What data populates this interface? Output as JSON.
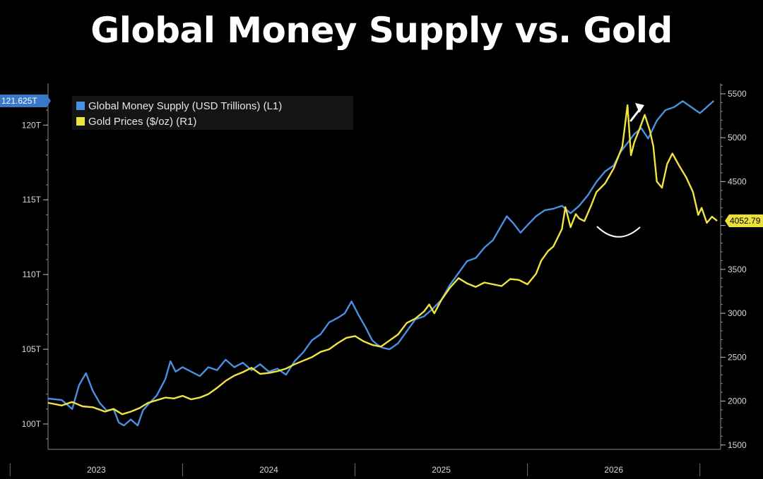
{
  "chart_data": {
    "type": "line",
    "title": "Global Money Supply vs. Gold",
    "x_labels": [
      "2023",
      "2024",
      "2025",
      "2026"
    ],
    "x_range": [
      2022.72,
      2026.62
    ],
    "left_axis": {
      "ticks": [
        100,
        105,
        110,
        115,
        120
      ],
      "tick_labels": [
        "100T",
        "105T",
        "110T",
        "115T",
        "120T"
      ],
      "range": [
        98.3,
        122.8
      ]
    },
    "right_axis": {
      "ticks": [
        1500,
        2000,
        2500,
        3000,
        3500,
        4000,
        4500,
        5000,
        5500
      ],
      "tick_labels": [
        "1500",
        "2000",
        "2500",
        "3000",
        "3500",
        "",
        "4500",
        "5000",
        "5500"
      ],
      "range": [
        1450,
        5620
      ]
    },
    "legend": {
      "position": "top-left"
    },
    "colors": {
      "money": "#4a90e2",
      "gold": "#f2e440",
      "badge_money": "#3a78c8",
      "badge_gold": "#ece03c"
    },
    "series": [
      {
        "name": "Global Money Supply (USD Trillions) (L1)",
        "axis": "left",
        "last_value_label": "121.625T",
        "points": [
          [
            2022.72,
            101.7
          ],
          [
            2022.8,
            101.6
          ],
          [
            2022.86,
            101.0
          ],
          [
            2022.9,
            102.6
          ],
          [
            2022.94,
            103.4
          ],
          [
            2022.98,
            102.2
          ],
          [
            2023.02,
            101.4
          ],
          [
            2023.06,
            100.9
          ],
          [
            2023.1,
            101.0
          ],
          [
            2023.13,
            100.1
          ],
          [
            2023.16,
            99.9
          ],
          [
            2023.2,
            100.3
          ],
          [
            2023.24,
            99.9
          ],
          [
            2023.27,
            100.9
          ],
          [
            2023.3,
            101.3
          ],
          [
            2023.35,
            101.9
          ],
          [
            2023.4,
            103.0
          ],
          [
            2023.43,
            104.2
          ],
          [
            2023.46,
            103.5
          ],
          [
            2023.5,
            103.8
          ],
          [
            2023.55,
            103.5
          ],
          [
            2023.6,
            103.2
          ],
          [
            2023.65,
            103.8
          ],
          [
            2023.7,
            103.6
          ],
          [
            2023.75,
            104.3
          ],
          [
            2023.8,
            103.8
          ],
          [
            2023.85,
            104.1
          ],
          [
            2023.9,
            103.6
          ],
          [
            2023.95,
            104.0
          ],
          [
            2024.0,
            103.5
          ],
          [
            2024.05,
            103.7
          ],
          [
            2024.1,
            103.3
          ],
          [
            2024.15,
            104.2
          ],
          [
            2024.2,
            104.8
          ],
          [
            2024.25,
            105.6
          ],
          [
            2024.3,
            106.0
          ],
          [
            2024.35,
            106.8
          ],
          [
            2024.4,
            107.1
          ],
          [
            2024.44,
            107.4
          ],
          [
            2024.48,
            108.2
          ],
          [
            2024.52,
            107.3
          ],
          [
            2024.56,
            106.5
          ],
          [
            2024.6,
            105.6
          ],
          [
            2024.63,
            105.3
          ],
          [
            2024.66,
            105.1
          ],
          [
            2024.7,
            105.0
          ],
          [
            2024.75,
            105.4
          ],
          [
            2024.8,
            106.2
          ],
          [
            2024.85,
            107.0
          ],
          [
            2024.9,
            107.2
          ],
          [
            2024.95,
            107.7
          ],
          [
            2025.0,
            108.3
          ],
          [
            2025.05,
            109.3
          ],
          [
            2025.1,
            110.1
          ],
          [
            2025.15,
            110.9
          ],
          [
            2025.2,
            111.1
          ],
          [
            2025.25,
            111.8
          ],
          [
            2025.3,
            112.3
          ],
          [
            2025.35,
            113.3
          ],
          [
            2025.38,
            113.9
          ],
          [
            2025.42,
            113.4
          ],
          [
            2025.46,
            112.8
          ],
          [
            2025.5,
            113.3
          ],
          [
            2025.55,
            113.9
          ],
          [
            2025.6,
            114.3
          ],
          [
            2025.65,
            114.4
          ],
          [
            2025.7,
            114.6
          ],
          [
            2025.75,
            114.1
          ],
          [
            2025.8,
            114.6
          ],
          [
            2025.85,
            115.3
          ],
          [
            2025.9,
            116.2
          ],
          [
            2025.95,
            116.9
          ],
          [
            2026.0,
            117.3
          ],
          [
            2026.04,
            118.2
          ],
          [
            2026.08,
            118.8
          ],
          [
            2026.12,
            119.4
          ],
          [
            2026.16,
            119.8
          ],
          [
            2026.2,
            119.1
          ],
          [
            2026.25,
            120.3
          ],
          [
            2026.3,
            121.0
          ],
          [
            2026.35,
            121.2
          ],
          [
            2026.4,
            121.6
          ],
          [
            2026.45,
            121.2
          ],
          [
            2026.5,
            120.8
          ],
          [
            2026.53,
            121.1
          ],
          [
            2026.58,
            121.62
          ]
        ]
      },
      {
        "name": "Gold Prices ($/oz) (R1)",
        "axis": "right",
        "last_value_label": "4052.79",
        "points": [
          [
            2022.72,
            1980
          ],
          [
            2022.8,
            1950
          ],
          [
            2022.86,
            1990
          ],
          [
            2022.92,
            1940
          ],
          [
            2022.98,
            1930
          ],
          [
            2023.05,
            1880
          ],
          [
            2023.1,
            1910
          ],
          [
            2023.15,
            1850
          ],
          [
            2023.2,
            1880
          ],
          [
            2023.25,
            1920
          ],
          [
            2023.3,
            1980
          ],
          [
            2023.35,
            2010
          ],
          [
            2023.4,
            2040
          ],
          [
            2023.45,
            2030
          ],
          [
            2023.5,
            2060
          ],
          [
            2023.55,
            2020
          ],
          [
            2023.6,
            2040
          ],
          [
            2023.65,
            2080
          ],
          [
            2023.7,
            2150
          ],
          [
            2023.75,
            2230
          ],
          [
            2023.8,
            2290
          ],
          [
            2023.85,
            2330
          ],
          [
            2023.9,
            2380
          ],
          [
            2023.95,
            2310
          ],
          [
            2024.0,
            2320
          ],
          [
            2024.05,
            2340
          ],
          [
            2024.1,
            2370
          ],
          [
            2024.15,
            2420
          ],
          [
            2024.2,
            2460
          ],
          [
            2024.25,
            2500
          ],
          [
            2024.3,
            2560
          ],
          [
            2024.35,
            2590
          ],
          [
            2024.4,
            2660
          ],
          [
            2024.45,
            2720
          ],
          [
            2024.5,
            2740
          ],
          [
            2024.55,
            2680
          ],
          [
            2024.6,
            2640
          ],
          [
            2024.65,
            2620
          ],
          [
            2024.7,
            2690
          ],
          [
            2024.75,
            2760
          ],
          [
            2024.8,
            2890
          ],
          [
            2024.85,
            2940
          ],
          [
            2024.9,
            3020
          ],
          [
            2024.93,
            3100
          ],
          [
            2024.96,
            3000
          ],
          [
            2025.0,
            3150
          ],
          [
            2025.05,
            3290
          ],
          [
            2025.1,
            3400
          ],
          [
            2025.15,
            3340
          ],
          [
            2025.2,
            3300
          ],
          [
            2025.25,
            3350
          ],
          [
            2025.3,
            3330
          ],
          [
            2025.35,
            3310
          ],
          [
            2025.4,
            3390
          ],
          [
            2025.45,
            3380
          ],
          [
            2025.5,
            3330
          ],
          [
            2025.55,
            3450
          ],
          [
            2025.58,
            3600
          ],
          [
            2025.62,
            3710
          ],
          [
            2025.65,
            3760
          ],
          [
            2025.7,
            3960
          ],
          [
            2025.72,
            4210
          ],
          [
            2025.75,
            3980
          ],
          [
            2025.78,
            4130
          ],
          [
            2025.8,
            4080
          ],
          [
            2025.83,
            4050
          ],
          [
            2025.87,
            4230
          ],
          [
            2025.9,
            4380
          ],
          [
            2025.95,
            4480
          ],
          [
            2026.0,
            4650
          ],
          [
            2026.05,
            4900
          ],
          [
            2026.08,
            5370
          ],
          [
            2026.1,
            4800
          ],
          [
            2026.12,
            4950
          ],
          [
            2026.15,
            5100
          ],
          [
            2026.18,
            5260
          ],
          [
            2026.21,
            5080
          ],
          [
            2026.23,
            4900
          ],
          [
            2026.25,
            4500
          ],
          [
            2026.28,
            4430
          ],
          [
            2026.31,
            4700
          ],
          [
            2026.34,
            4820
          ],
          [
            2026.38,
            4680
          ],
          [
            2026.42,
            4550
          ],
          [
            2026.46,
            4380
          ],
          [
            2026.49,
            4120
          ],
          [
            2026.51,
            4200
          ],
          [
            2026.54,
            4030
          ],
          [
            2026.57,
            4100
          ],
          [
            2026.6,
            4052.79
          ]
        ]
      }
    ]
  }
}
